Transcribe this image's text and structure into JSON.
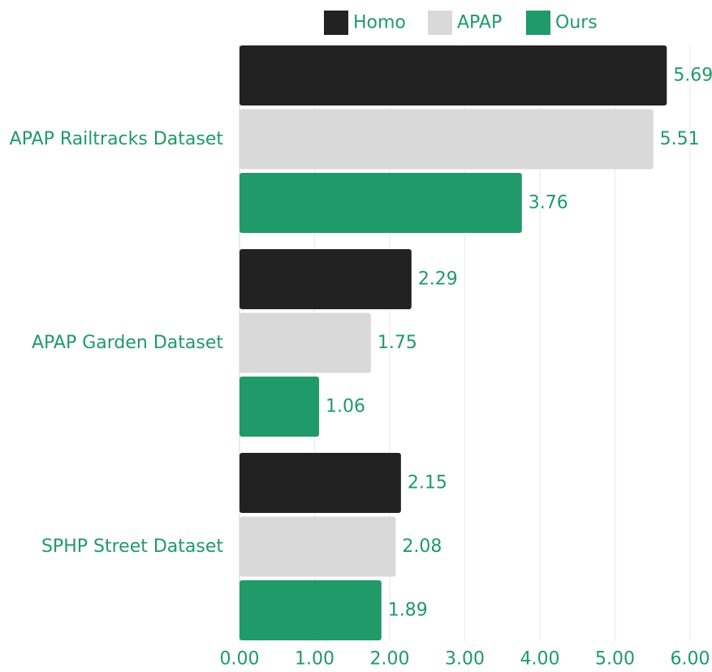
{
  "chart_data": {
    "type": "bar",
    "orientation": "horizontal",
    "categories": [
      "APAP Railtracks Dataset",
      "APAP Garden Dataset",
      "SPHP Street Dataset"
    ],
    "series": [
      {
        "name": "Homo",
        "values": [
          5.69,
          2.29,
          2.15
        ]
      },
      {
        "name": "APAP",
        "values": [
          5.51,
          1.75,
          2.08
        ]
      },
      {
        "name": "Ours",
        "values": [
          3.76,
          1.06,
          1.89
        ]
      }
    ],
    "xlim": [
      0,
      6
    ],
    "x_ticks": [
      "0.00",
      "1.00",
      "2.00",
      "3.00",
      "4.00",
      "5.00",
      "6.00"
    ],
    "grid": "vertical",
    "legend": "top",
    "value_label_format": "2 decimals"
  },
  "colors": {
    "series": [
      "#222222",
      "#d9d9d9",
      "#1f9a68"
    ],
    "text_accent": "#1f9a68",
    "gridline": "#dfeeea",
    "axis": "#cfd8d4"
  }
}
